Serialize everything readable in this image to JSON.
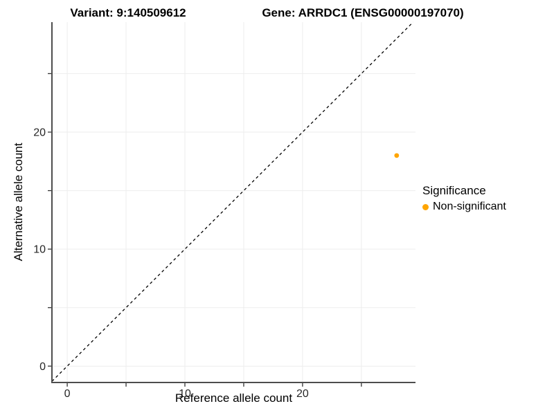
{
  "chart_data": {
    "type": "scatter",
    "title_left": "Variant: 9:140509612",
    "title_right": "Gene: ARRDC1 (ENSG00000197070)",
    "xlabel": "Reference allele count",
    "ylabel": "Alternative allele count",
    "xlim": [
      -1.3,
      29.6
    ],
    "ylim": [
      -1.4,
      29.4
    ],
    "x_ticks": [
      0,
      5,
      10,
      15,
      20,
      25
    ],
    "x_tick_labels": [
      "0",
      "",
      "10",
      "",
      "20",
      ""
    ],
    "y_ticks": [
      0,
      5,
      10,
      15,
      20,
      25
    ],
    "y_tick_labels": [
      "0",
      "",
      "10",
      "",
      "20",
      ""
    ],
    "grid": true,
    "identity_line": {
      "style": "dashed",
      "color": "#000000",
      "from": -1.3,
      "to": 29.4
    },
    "series": [
      {
        "name": "Non-significant",
        "color": "#FFA500",
        "points": [
          {
            "x": 28,
            "y": 18
          }
        ]
      }
    ],
    "legend": {
      "title": "Significance",
      "position": "right",
      "items": [
        {
          "label": "Non-significant",
          "color": "#FFA500"
        }
      ]
    }
  },
  "colors": {
    "axis_line": "#4d4d4d",
    "tick_mark": "#333333",
    "gridline": "#ededed",
    "tick_label": "#262626"
  }
}
